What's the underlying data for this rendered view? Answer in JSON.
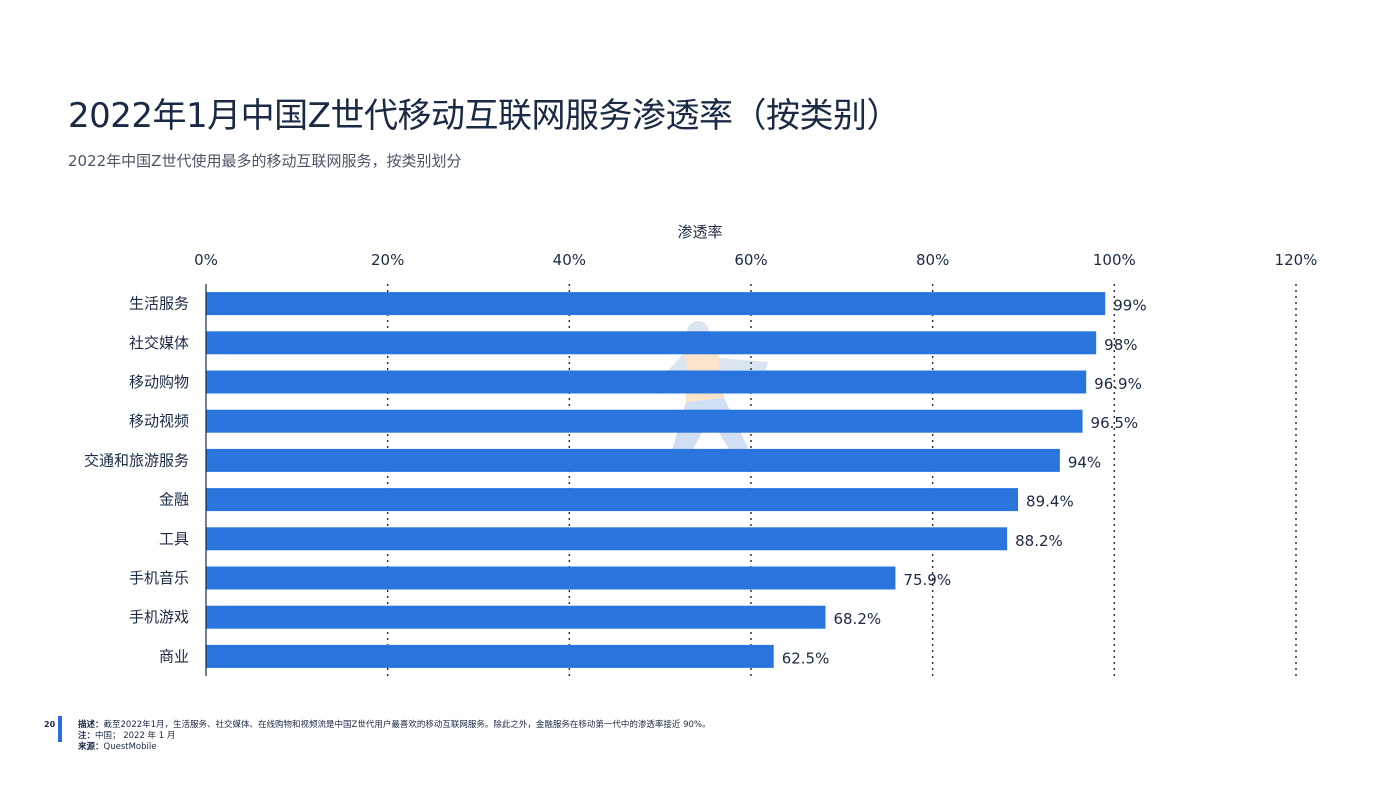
{
  "header": {
    "title": "2022年1月中国Z世代移动互联网服务渗透率（按类别）",
    "subtitle": "2022年中国Z世代使用最多的移动互联网服务，按类别划分"
  },
  "colors": {
    "bar": "#2a74de",
    "grid": "#333333",
    "accent": "#2a6fdb"
  },
  "chart_data": {
    "type": "bar",
    "orientation": "horizontal",
    "xlabel": "渗透率",
    "xlim": [
      0,
      120
    ],
    "x_ticks": [
      "0%",
      "20%",
      "40%",
      "60%",
      "80%",
      "100%",
      "120%"
    ],
    "x_tick_values": [
      0,
      20,
      40,
      60,
      80,
      100,
      120
    ],
    "grid": "vertical dotted",
    "categories": [
      "生活服务",
      "社交媒体",
      "移动购物",
      "移动视频",
      "交通和旅游服务",
      "金融",
      "工具",
      "手机音乐",
      "手机游戏",
      "商业"
    ],
    "values": [
      99,
      98,
      96.9,
      96.5,
      94,
      89.4,
      88.2,
      75.9,
      68.2,
      62.5
    ],
    "data_labels": [
      "99%",
      "98%",
      "96.9%",
      "96.5%",
      "94%",
      "89.4%",
      "88.2%",
      "75.9%",
      "68.2%",
      "62.5%"
    ]
  },
  "footer": {
    "page_number": "20",
    "description_label": "描述：",
    "description": "截至2022年1月，生活服务、社交媒体、在线购物和视频流是中国Z世代用户最喜欢的移动互联网服务。除此之外，金融服务在移动第一代中的渗透率接近 90%。",
    "note_label": "注：",
    "note": "中国； 2022 年 1 月",
    "source_label": "来源：",
    "source": "QuestMobile"
  }
}
